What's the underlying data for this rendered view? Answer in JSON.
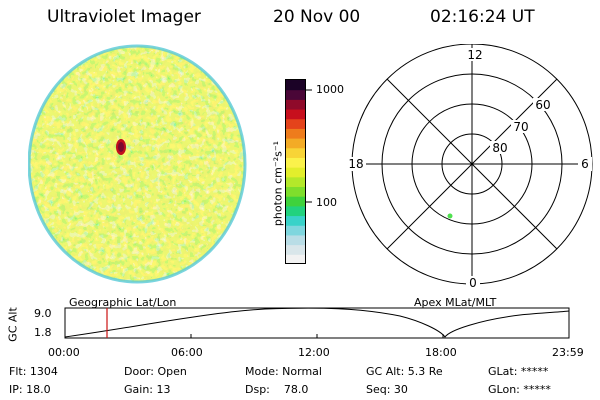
{
  "header": {
    "instrument": "Ultraviolet Imager",
    "date": "20 Nov 00",
    "time": "02:16:24 UT"
  },
  "colorbar": {
    "unit_label": "photon cm⁻²s⁻¹",
    "tick_high": "1000",
    "tick_mid": "100",
    "colors": [
      "#f2f2f2",
      "#d9e6ea",
      "#b9dde6",
      "#7fd6de",
      "#39d2c9",
      "#22d27e",
      "#3fd23c",
      "#7ede2c",
      "#b4e82a",
      "#e3ee2c",
      "#fbf24b",
      "#f8d437",
      "#f3ab26",
      "#ee7c1c",
      "#e4431b",
      "#c70f1d",
      "#8f0a2a",
      "#4a0637",
      "#1b0226"
    ]
  },
  "polar_plot": {
    "mlt_top": "12",
    "mlt_bottom": "0",
    "mlt_left": "18",
    "mlt_right": "6",
    "lat_60": "60",
    "lat_70": "70",
    "lat_80": "80",
    "marker_color": "#4fe04f"
  },
  "timeline": {
    "left_title": "Geographic Lat/Lon",
    "right_title": "Apex MLat/MLT",
    "axis_label": "GC Alt",
    "y_top": "9.0",
    "y_bottom": "1.8",
    "x_ticks": [
      "00:00",
      "06:00",
      "12:00",
      "18:00",
      "23:59"
    ],
    "current_time_color": "#cc1111"
  },
  "info": {
    "flt": "Flt: 1304",
    "ip": "IP: 18.0",
    "door": "Door: Open",
    "gain": "Gain: 13",
    "mode": "Mode: Normal",
    "dsp": "Dsp:    78.0",
    "gcalt": "GC Alt: 5.3 Re",
    "seq": "Seq: 30",
    "glat": "GLat: *****",
    "glon": "GLon: *****"
  }
}
